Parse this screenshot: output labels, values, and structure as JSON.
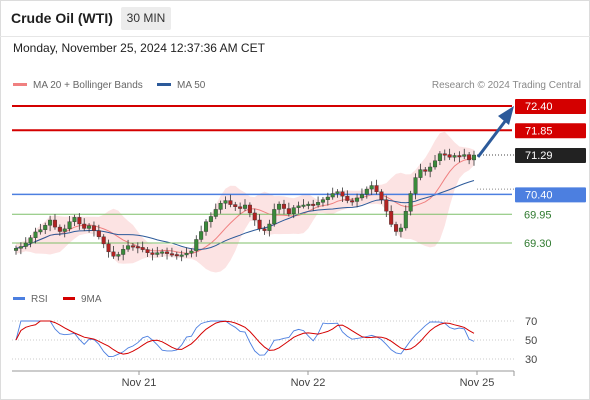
{
  "header": {
    "instrument": "Crude Oil (WTI)",
    "timeframe": "30 MIN",
    "datetime": "Monday, November 25, 2024 12:37:36 AM CET"
  },
  "legend": {
    "ma20": {
      "label": "MA 20 + Bollinger Bands",
      "color": "#f08080"
    },
    "ma50": {
      "label": "MA 50",
      "color": "#2c5a9a"
    },
    "credit": "Research © 2024 Trading Central"
  },
  "chart_data": [
    {
      "type": "candlestick",
      "title": "Crude Oil (WTI)",
      "x_labels": [
        "Nov 21",
        "Nov 22",
        "Nov 25"
      ],
      "ylim": [
        68.7,
        72.6
      ],
      "current_price": "71.29",
      "levels": [
        {
          "label": "72.40",
          "value": 72.4,
          "color": "#d40000",
          "kind": "resistance"
        },
        {
          "label": "71.85",
          "value": 71.85,
          "color": "#d40000",
          "kind": "resistance"
        },
        {
          "label": "70.40",
          "value": 70.4,
          "color": "#4c7fe0",
          "kind": "pivot"
        },
        {
          "label": "69.95",
          "value": 69.95,
          "color": "#7fbf6a",
          "kind": "support"
        },
        {
          "label": "69.30",
          "value": 69.3,
          "color": "#7fbf6a",
          "kind": "support"
        }
      ],
      "close": [
        69.18,
        69.22,
        69.3,
        69.42,
        69.55,
        69.6,
        69.7,
        69.82,
        69.66,
        69.56,
        69.62,
        69.78,
        69.88,
        69.73,
        69.63,
        69.69,
        69.58,
        69.44,
        69.28,
        69.1,
        69.0,
        69.04,
        69.16,
        69.24,
        69.22,
        69.2,
        69.15,
        69.08,
        69.04,
        69.08,
        69.1,
        69.06,
        69.04,
        69.02,
        69.03,
        69.07,
        69.12,
        69.38,
        69.56,
        69.78,
        69.9,
        70.06,
        70.2,
        70.26,
        70.17,
        70.12,
        70.08,
        70.16,
        69.98,
        69.82,
        69.62,
        69.58,
        69.73,
        70.06,
        70.18,
        70.08,
        69.96,
        70.1,
        70.14,
        70.16,
        70.18,
        70.16,
        70.22,
        70.28,
        70.34,
        70.42,
        70.46,
        70.36,
        70.26,
        70.24,
        70.32,
        70.4,
        70.52,
        70.6,
        70.46,
        70.28,
        70.02,
        69.72,
        69.56,
        69.64,
        70.02,
        70.42,
        70.78,
        70.96,
        70.92,
        71.02,
        71.16,
        71.32,
        71.3,
        71.24,
        71.28,
        71.26,
        71.3,
        71.18,
        71.29
      ],
      "high_offset": 0.12,
      "low_offset": 0.12
    },
    {
      "type": "line",
      "title": "RSI",
      "series": [
        {
          "name": "RSI",
          "color": "#4c7fe0"
        },
        {
          "name": "9MA",
          "color": "#d40000"
        }
      ],
      "ylim": [
        20,
        80
      ],
      "yticks": [
        "70",
        "50",
        "30"
      ],
      "x_labels": [
        "Nov 21",
        "Nov 22",
        "Nov 25"
      ]
    }
  ],
  "rsi_legend": {
    "rsi": "RSI",
    "ma9": "9MA"
  }
}
